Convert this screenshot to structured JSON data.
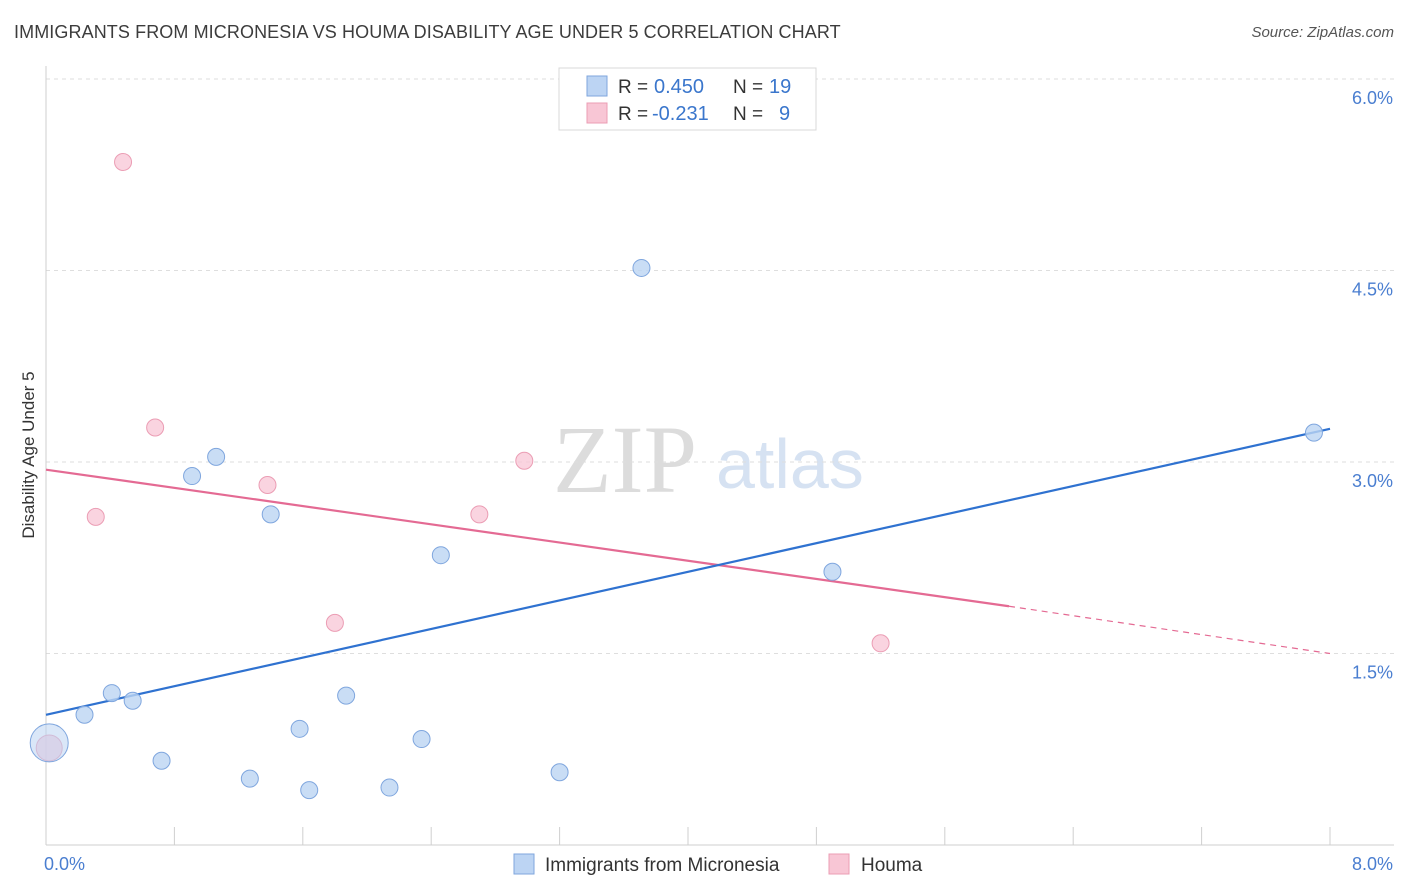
{
  "title": "IMMIGRANTS FROM MICRONESIA VS HOUMA DISABILITY AGE UNDER 5 CORRELATION CHART",
  "source": "Source: ZipAtlas.com",
  "watermark": {
    "zip": "ZIP",
    "atlas": "atlas"
  },
  "legend": {
    "series1": {
      "r_label": "R =",
      "r_value": "0.450",
      "n_label": "N =",
      "n_value": "19"
    },
    "series2": {
      "r_label": "R =",
      "r_value": "-0.231",
      "n_label": "N =",
      "n_value": "9"
    }
  },
  "colors": {
    "blue_fill": "#bcd4f3",
    "blue_stroke": "#7fa6de",
    "blue_line": "#2f72d0",
    "pink_fill": "#f8c6d5",
    "pink_stroke": "#eb9db4",
    "pink_line": "#e46a93",
    "accent_text": "#4a7ed0"
  },
  "chart_data": {
    "type": "scatter",
    "title": "IMMIGRANTS FROM MICRONESIA VS HOUMA DISABILITY AGE UNDER 5 CORRELATION CHART",
    "xlabel": "",
    "ylabel": "Disability Age Under 5",
    "xlim": [
      0,
      8.0
    ],
    "ylim": [
      0,
      6.0
    ],
    "x_tick_labels": [
      "0.0%",
      "8.0%"
    ],
    "y_tick_labels": [
      "1.5%",
      "3.0%",
      "4.5%",
      "6.0%"
    ],
    "y_ticks": [
      1.5,
      3.0,
      4.5,
      6.0
    ],
    "grid": true,
    "legend_position": "top-center",
    "series": [
      {
        "name": "Immigrants from Micronesia",
        "color": "#bcd4f3",
        "points": [
          [
            0.02,
            0.8
          ],
          [
            0.24,
            1.02
          ],
          [
            0.41,
            1.19
          ],
          [
            0.54,
            1.13
          ],
          [
            0.72,
            0.66
          ],
          [
            0.91,
            2.89
          ],
          [
            1.06,
            3.04
          ],
          [
            1.27,
            0.52
          ],
          [
            1.4,
            2.59
          ],
          [
            1.58,
            0.91
          ],
          [
            1.64,
            0.43
          ],
          [
            1.87,
            1.17
          ],
          [
            2.14,
            0.45
          ],
          [
            2.34,
            0.83
          ],
          [
            2.46,
            2.27
          ],
          [
            3.2,
            0.57
          ],
          [
            3.71,
            4.52
          ],
          [
            4.9,
            2.14
          ],
          [
            7.9,
            3.23
          ]
        ],
        "trend": {
          "x": [
            0.0,
            8.0
          ],
          "y": [
            1.02,
            3.26
          ]
        }
      },
      {
        "name": "Houma",
        "color": "#f8c6d5",
        "points": [
          [
            0.02,
            0.76
          ],
          [
            0.31,
            2.57
          ],
          [
            0.48,
            5.35
          ],
          [
            0.68,
            3.27
          ],
          [
            1.38,
            2.82
          ],
          [
            1.8,
            1.74
          ],
          [
            2.7,
            2.59
          ],
          [
            2.98,
            3.01
          ],
          [
            5.2,
            1.58
          ]
        ],
        "trend": {
          "x": [
            0.0,
            6.0
          ],
          "y": [
            2.94,
            1.87
          ]
        },
        "trend_dashed": {
          "x": [
            6.0,
            8.0
          ],
          "y": [
            1.87,
            1.5
          ]
        }
      }
    ]
  }
}
